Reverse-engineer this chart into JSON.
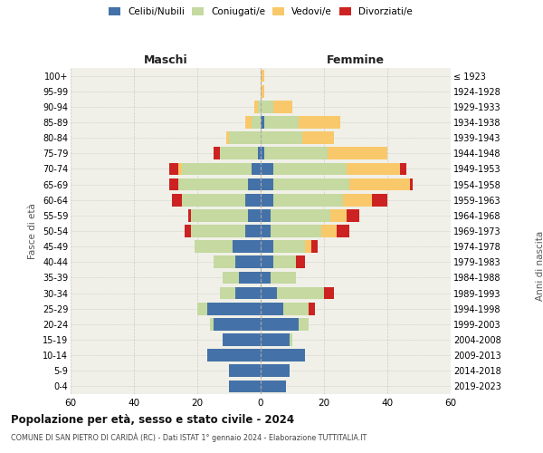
{
  "age_groups": [
    "0-4",
    "5-9",
    "10-14",
    "15-19",
    "20-24",
    "25-29",
    "30-34",
    "35-39",
    "40-44",
    "45-49",
    "50-54",
    "55-59",
    "60-64",
    "65-69",
    "70-74",
    "75-79",
    "80-84",
    "85-89",
    "90-94",
    "95-99",
    "100+"
  ],
  "birth_years": [
    "2019-2023",
    "2014-2018",
    "2009-2013",
    "2004-2008",
    "1999-2003",
    "1994-1998",
    "1989-1993",
    "1984-1988",
    "1979-1983",
    "1974-1978",
    "1969-1973",
    "1964-1968",
    "1959-1963",
    "1954-1958",
    "1949-1953",
    "1944-1948",
    "1939-1943",
    "1934-1938",
    "1929-1933",
    "1924-1928",
    "≤ 1923"
  ],
  "maschi": {
    "celibi": [
      10,
      10,
      17,
      12,
      15,
      17,
      8,
      7,
      8,
      9,
      5,
      4,
      5,
      4,
      3,
      1,
      0,
      0,
      0,
      0,
      0
    ],
    "coniugati": [
      0,
      0,
      0,
      0,
      1,
      3,
      5,
      5,
      7,
      12,
      17,
      18,
      20,
      22,
      22,
      12,
      10,
      3,
      1,
      0,
      0
    ],
    "vedovi": [
      0,
      0,
      0,
      0,
      0,
      0,
      0,
      0,
      0,
      0,
      0,
      0,
      0,
      0,
      1,
      0,
      1,
      2,
      1,
      0,
      0
    ],
    "divorziati": [
      0,
      0,
      0,
      0,
      0,
      0,
      0,
      0,
      0,
      0,
      2,
      1,
      3,
      3,
      3,
      2,
      0,
      0,
      0,
      0,
      0
    ]
  },
  "femmine": {
    "nubili": [
      8,
      9,
      14,
      9,
      12,
      7,
      5,
      3,
      4,
      4,
      3,
      3,
      4,
      4,
      4,
      1,
      0,
      1,
      0,
      0,
      0
    ],
    "coniugate": [
      0,
      0,
      0,
      1,
      3,
      8,
      15,
      8,
      7,
      10,
      16,
      19,
      22,
      24,
      23,
      20,
      13,
      11,
      4,
      0,
      0
    ],
    "vedove": [
      0,
      0,
      0,
      0,
      0,
      0,
      0,
      0,
      0,
      2,
      5,
      5,
      9,
      19,
      17,
      19,
      10,
      13,
      6,
      1,
      1
    ],
    "divorziate": [
      0,
      0,
      0,
      0,
      0,
      2,
      3,
      0,
      3,
      2,
      4,
      4,
      5,
      1,
      2,
      0,
      0,
      0,
      0,
      0,
      0
    ]
  },
  "colors": {
    "celibi_nubili": "#4472a8",
    "coniugati": "#c5d9a0",
    "vedovi": "#f9c86a",
    "divorziati": "#cc2222"
  },
  "title": "Popolazione per età, sesso e stato civile - 2024",
  "subtitle": "COMUNE DI SAN PIETRO DI CARIDÀ (RC) - Dati ISTAT 1° gennaio 2024 - Elaborazione TUTTITALIA.IT",
  "xlabel_left": "Maschi",
  "xlabel_right": "Femmine",
  "ylabel_left": "Fasce di età",
  "ylabel_right": "Anni di nascita",
  "xlim": 60,
  "background_color": "#ffffff",
  "grid_color": "#cccccc",
  "plot_bg": "#f0f0e8"
}
